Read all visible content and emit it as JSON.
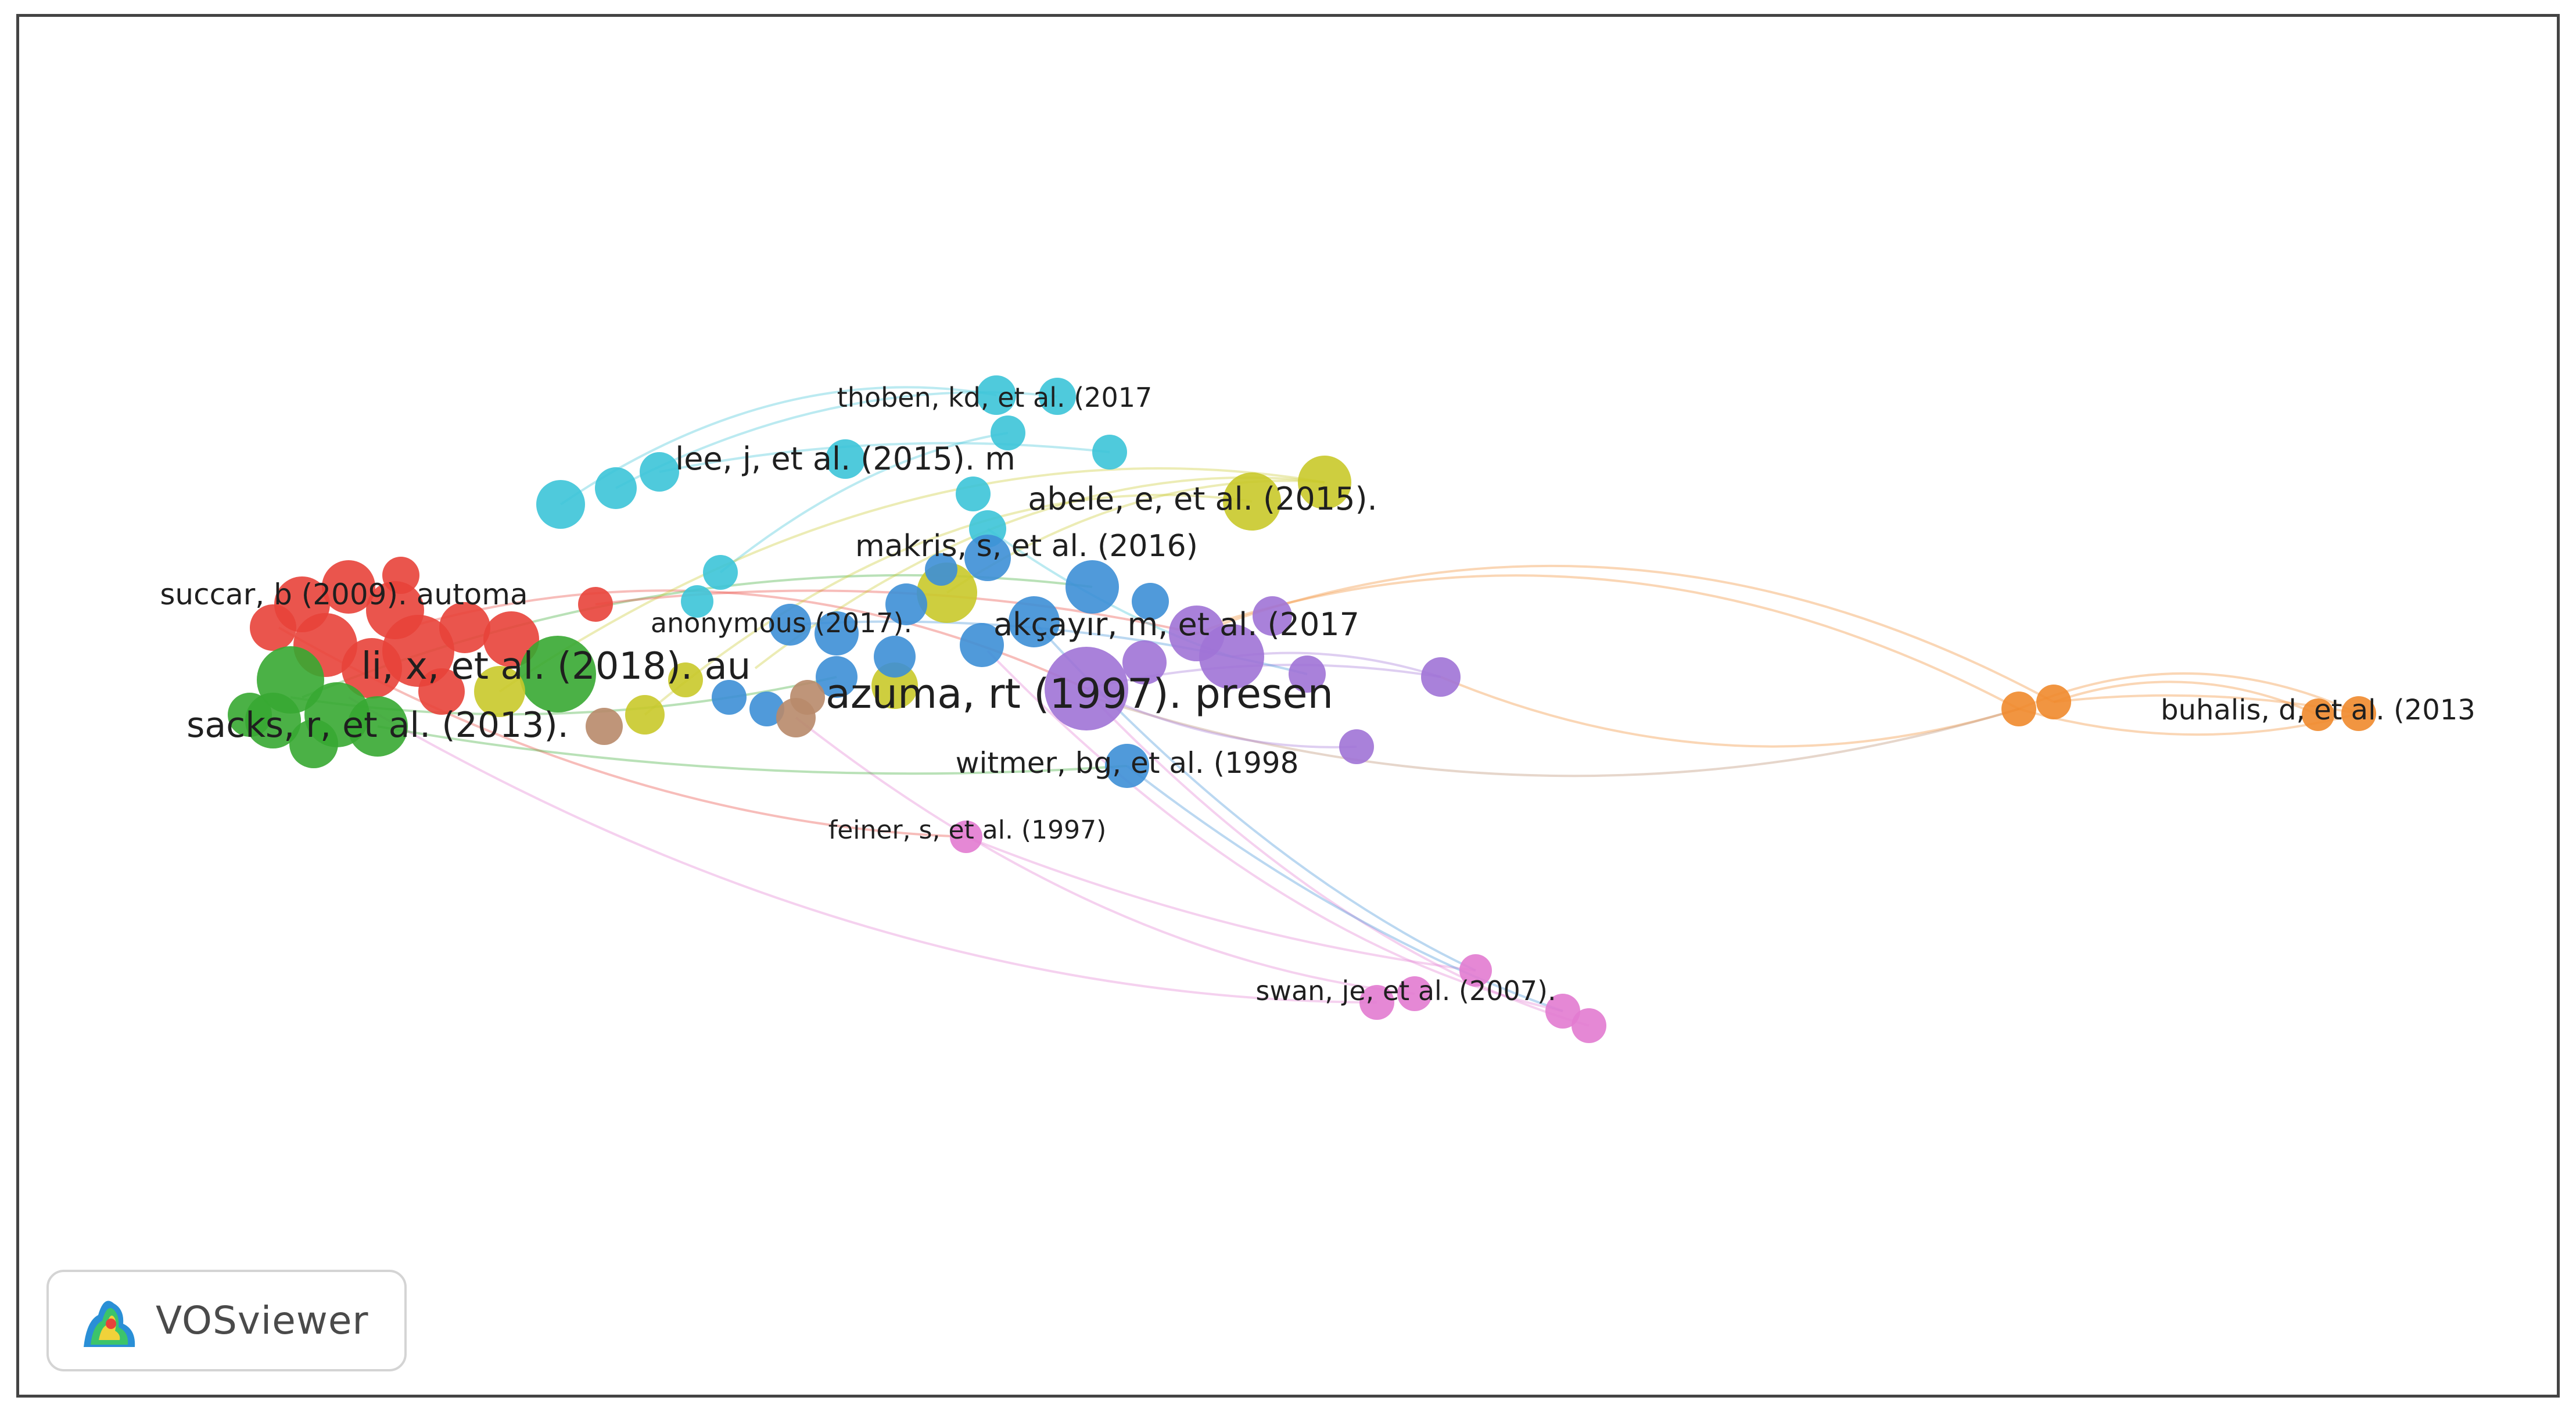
{
  "app": {
    "logo_text": "VOSviewer"
  },
  "clusters": {
    "red": "#e8423a",
    "green": "#37a832",
    "blue": "#3d8fd6",
    "yellow": "#c9c92a",
    "purple": "#a073d6",
    "cyan": "#3cc4d8",
    "orange": "#f08a2c",
    "pink": "#e27bd0",
    "brown": "#b88a6a"
  },
  "labels": [
    {
      "id": "thoben",
      "text": "thoben, kd, et al. (2017",
      "cluster": "cyan",
      "size": "small"
    },
    {
      "id": "lee",
      "text": "lee, j, et al. (2015). m",
      "cluster": "cyan",
      "size": "medium"
    },
    {
      "id": "abele",
      "text": "abele, e, et al. (2015).",
      "cluster": "yellow",
      "size": "medium"
    },
    {
      "id": "makris",
      "text": "makris, s, et al. (2016)",
      "cluster": "blue",
      "size": "medium"
    },
    {
      "id": "succar",
      "text": "succar, b (2009). automa",
      "cluster": "red",
      "size": "medium"
    },
    {
      "id": "anonymous",
      "text": "anonymous (2017).",
      "cluster": "yellow",
      "size": "small"
    },
    {
      "id": "akcayir",
      "text": "akçayır, m, et al. (2017",
      "cluster": "purple",
      "size": "medium"
    },
    {
      "id": "li",
      "text": "li, x, et al. (2018). au",
      "cluster": "red",
      "size": "large"
    },
    {
      "id": "azuma",
      "text": "azuma, rt (1997). presen",
      "cluster": "purple",
      "size": "xlarge"
    },
    {
      "id": "sacks",
      "text": "sacks, r, et al. (2013).",
      "cluster": "green",
      "size": "large"
    },
    {
      "id": "witmer",
      "text": "witmer, bg, et al. (1998",
      "cluster": "blue",
      "size": "medium"
    },
    {
      "id": "feiner",
      "text": "feiner, s, et al. (1997)",
      "cluster": "pink",
      "size": "small"
    },
    {
      "id": "swan",
      "text": "swan, je, et al. (2007).",
      "cluster": "pink",
      "size": "small"
    },
    {
      "id": "buhalis",
      "text": "buhalis, d, et al. (2013",
      "cluster": "orange",
      "size": "medium"
    }
  ]
}
